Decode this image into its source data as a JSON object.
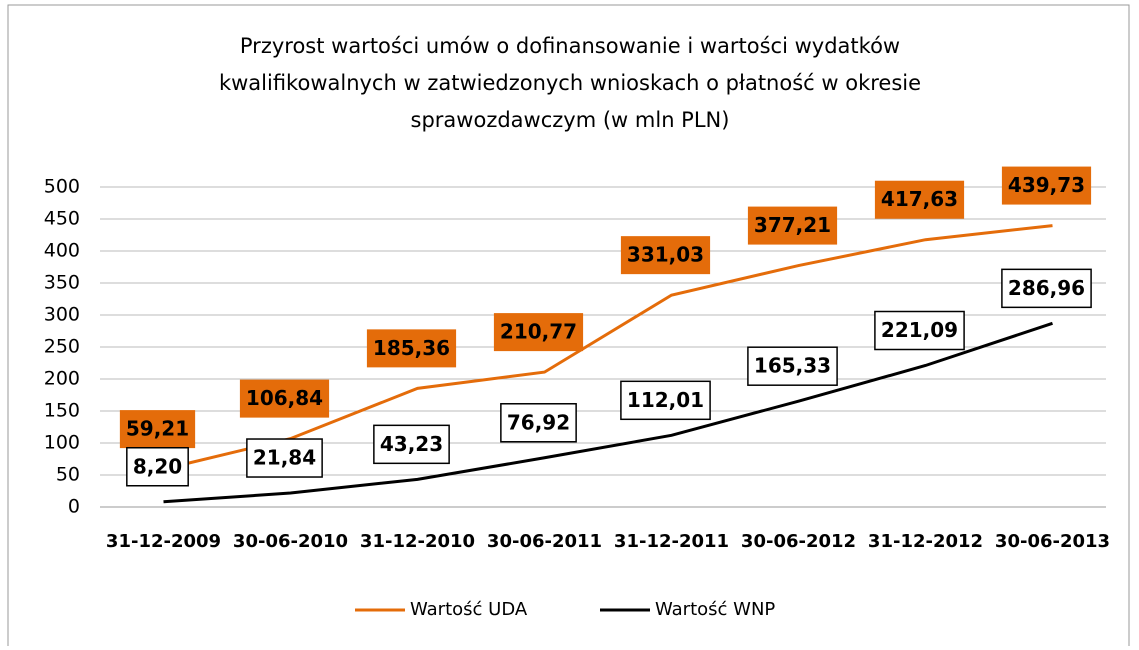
{
  "chart_data": {
    "type": "line",
    "title": "Przyrost wartości umów o dofinansowanie  i wartości wydatków kwalifikowalnych w zatwiedzonych wnioskach o płatność w okresie sprawozdawczym (w mln PLN)",
    "categories": [
      "31-12-2009",
      "30-06-2010",
      "31-12-2010",
      "30-06-2011",
      "31-12-2011",
      "30-06-2012",
      "31-12-2012",
      "30-06-2013"
    ],
    "series": [
      {
        "name": "Wartość UDA",
        "color": "#e46c0a",
        "values": [
          59.21,
          106.84,
          185.36,
          210.77,
          331.03,
          377.21,
          417.63,
          439.73
        ],
        "value_labels": [
          "59,21",
          "106,84",
          "185,36",
          "210,77",
          "331,03",
          "377,21",
          "417,63",
          "439,73"
        ]
      },
      {
        "name": "Wartość WNP",
        "color": "#000000",
        "values": [
          8.2,
          21.84,
          43.23,
          76.92,
          112.01,
          165.33,
          221.09,
          286.96
        ],
        "value_labels": [
          "8,20",
          "21,84",
          "43,23",
          "76,92",
          "112,01",
          "165,33",
          "221,09",
          "286,96"
        ]
      }
    ],
    "ylim": [
      0,
      500
    ],
    "yticks": [
      0,
      50,
      100,
      150,
      200,
      250,
      300,
      350,
      400,
      450,
      500
    ],
    "grid": true
  }
}
